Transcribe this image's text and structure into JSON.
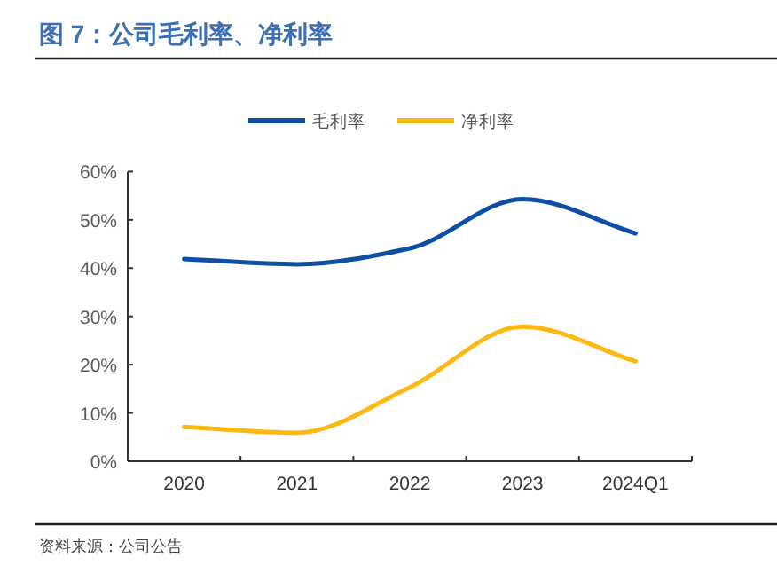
{
  "chart_data": {
    "type": "line",
    "title": "图 7：公司毛利率、净利率",
    "categories": [
      "2020",
      "2021",
      "2022",
      "2023",
      "2024Q1"
    ],
    "series": [
      {
        "name": "毛利率",
        "color": "#0d4fa3",
        "values": [
          41.9,
          40.8,
          44.1,
          54.3,
          47.2
        ]
      },
      {
        "name": "净利率",
        "color": "#fdb913",
        "values": [
          7.1,
          5.9,
          15.3,
          27.9,
          20.7
        ]
      }
    ],
    "ylim": [
      0,
      60
    ],
    "yticks": [
      {
        "value": 0,
        "label": "0%"
      },
      {
        "value": 10,
        "label": "10%"
      },
      {
        "value": 20,
        "label": "20%"
      },
      {
        "value": 30,
        "label": "30%"
      },
      {
        "value": 40,
        "label": "40%"
      },
      {
        "value": 50,
        "label": "50%"
      },
      {
        "value": 60,
        "label": "60%"
      }
    ],
    "legend": "top",
    "annotations": [
      "资料来源：公司公告"
    ]
  }
}
